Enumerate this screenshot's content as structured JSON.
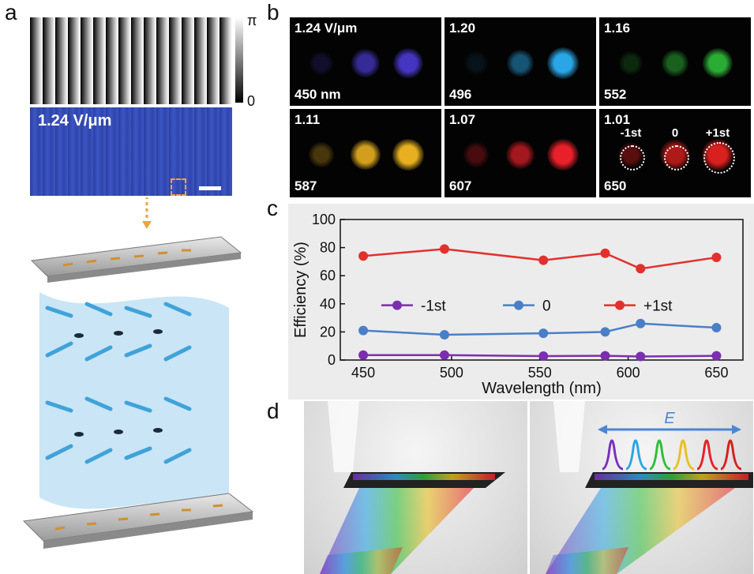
{
  "panel_labels": {
    "a": "a",
    "b": "b",
    "c": "c",
    "d": "d"
  },
  "panel_a": {
    "colorbar_top": "π",
    "colorbar_bottom": "0",
    "micro_label": "1.24 V/μm"
  },
  "panel_b": {
    "cells": [
      {
        "top": "1.24 V/μm",
        "bottom": "450 nm",
        "color": "#4b3bd6"
      },
      {
        "top": "1.20",
        "bottom": "496",
        "color": "#2aa6e6"
      },
      {
        "top": "1.16",
        "bottom": "552",
        "color": "#2fbf3a"
      },
      {
        "top": "1.11",
        "bottom": "587",
        "color": "#e8b020"
      },
      {
        "top": "1.07",
        "bottom": "607",
        "color": "#e8202a"
      },
      {
        "top": "1.01",
        "bottom": "650",
        "color": "#d8201e"
      }
    ],
    "order_labels": [
      "-1st",
      "0",
      "+1st"
    ]
  },
  "chart_data": {
    "type": "line",
    "xlabel": "Wavelength (nm)",
    "ylabel": "Efficiency (%)",
    "xlim": [
      437,
      665
    ],
    "ylim": [
      0,
      100
    ],
    "xticks": [
      450,
      500,
      550,
      600,
      650
    ],
    "yticks": [
      0,
      20,
      40,
      60,
      80,
      100
    ],
    "legend_placement": "middle",
    "x": [
      450,
      496,
      552,
      587,
      607,
      650
    ],
    "series": [
      {
        "name": "-1st",
        "color": "#7b2fb0",
        "values": [
          3.5,
          3.5,
          2.8,
          3.0,
          2.5,
          3.0
        ]
      },
      {
        "name": "0",
        "color": "#4a7fc8",
        "values": [
          21,
          18,
          19,
          20,
          26,
          23
        ]
      },
      {
        "name": "+1st",
        "color": "#e2312d",
        "values": [
          74,
          79,
          71,
          76,
          65,
          73
        ]
      }
    ]
  },
  "panel_d": {
    "e_label": "E",
    "peak_colors": [
      "#7a2fc0",
      "#2aa6e6",
      "#2fbf3a",
      "#e8c020",
      "#e8202a",
      "#d8201e"
    ]
  }
}
